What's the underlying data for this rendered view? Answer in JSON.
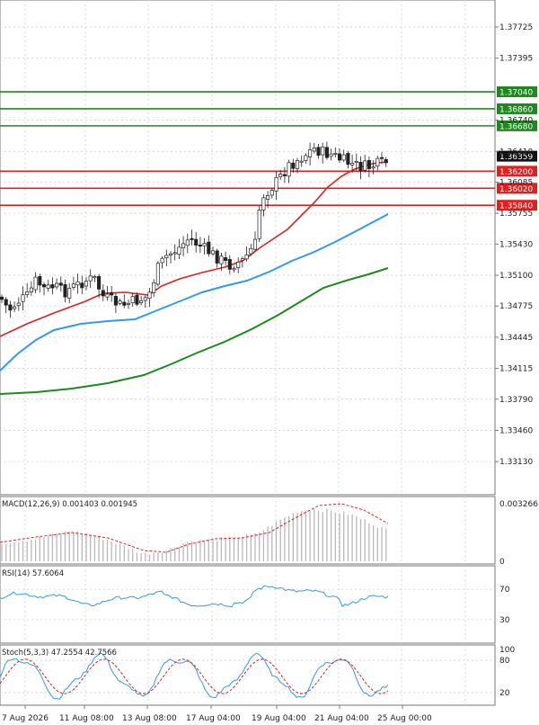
{
  "chart_data": {
    "type": "candlestick",
    "main": {
      "y_axis_ticks": [
        "1.37725",
        "1.37395",
        "1.36740",
        "1.36410",
        "1.36085",
        "1.35755",
        "1.35430",
        "1.35100",
        "1.34775",
        "1.34445",
        "1.34115",
        "1.33790",
        "1.33460",
        "1.33130"
      ],
      "price_label": "1.36359",
      "support_resistance": [
        {
          "value": 1.3704,
          "label": "1.37040",
          "color": "#1e8a1e"
        },
        {
          "value": 1.3686,
          "label": "1.36860",
          "color": "#1e8a1e"
        },
        {
          "value": 1.3668,
          "label": "1.36680",
          "color": "#1e8a1e"
        },
        {
          "value": 1.362,
          "label": "1.36200",
          "color": "#e02020"
        },
        {
          "value": 1.3602,
          "label": "1.36020",
          "color": "#e02020"
        },
        {
          "value": 1.3584,
          "label": "1.35840",
          "color": "#e02020"
        }
      ],
      "ylim": [
        1.33,
        1.38
      ],
      "colors": {
        "up": "#1e8a1e",
        "down": "#e02020",
        "ma_fast": "#e02020",
        "ma_mid": "#3399ee",
        "ma_slow": "#1e8a1e"
      }
    },
    "x_axis_labels": [
      "7 Aug 2026",
      "11 Aug 08:00",
      "13 Aug 08:00",
      "17 Aug 04:00",
      "19 Aug 04:00",
      "21 Aug 04:00",
      "25 Aug 00:00"
    ],
    "macd": {
      "label": "MACD(12,26,9) 0.001403 0.001945",
      "ticks": [
        "0.003266",
        "0"
      ],
      "ylim": [
        0,
        0.003266
      ]
    },
    "rsi": {
      "label": "RSI(14) 57.6064",
      "ticks": [
        "70",
        "30"
      ],
      "ylim": [
        0,
        100
      ]
    },
    "stoch": {
      "label": "Stoch(5,3,3) 47.2554 42.7566",
      "ticks": [
        "100",
        "80",
        "20"
      ],
      "ylim": [
        0,
        100
      ]
    }
  }
}
